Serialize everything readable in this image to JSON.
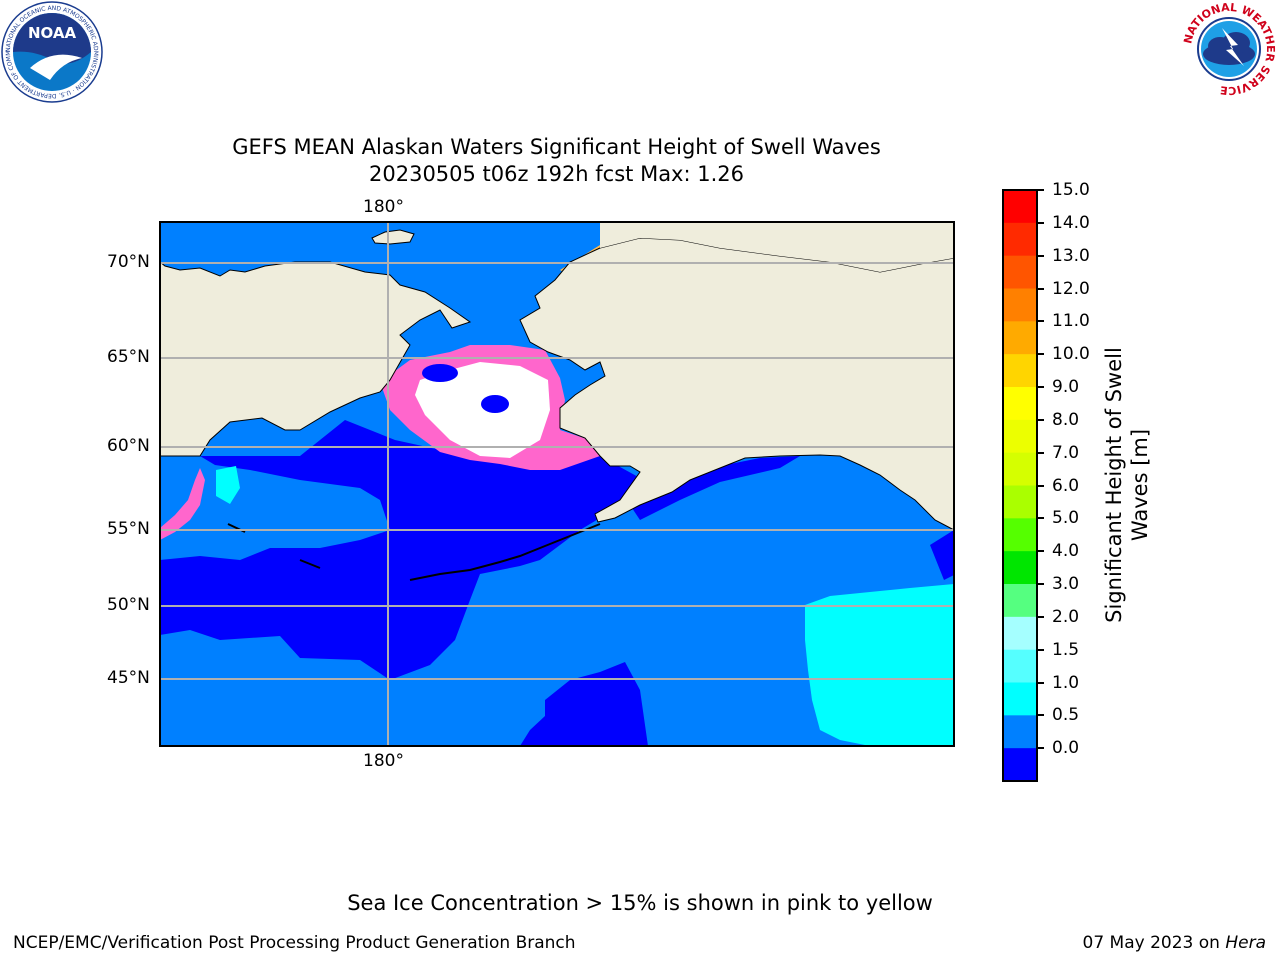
{
  "logos": {
    "noaa": {
      "text": "NOAA",
      "ring_text": "NATIONAL OCEANIC AND ATMOSPHERIC ADMINISTRATION · U.S. DEPARTMENT OF COMMERCE"
    },
    "nws": {
      "ring_text": "NATIONAL WEATHER SERVICE"
    }
  },
  "header": {
    "title_line1": "GEFS MEAN Alaskan Waters Significant Height of Swell Waves",
    "title_line2": "20230505 t06z 192h fcst   Max: 1.26"
  },
  "map": {
    "top_lon_label": "180°",
    "bottom_lon_label": "180°",
    "lat_labels": [
      "70°N",
      "65°N",
      "60°N",
      "55°N",
      "50°N",
      "45°N"
    ],
    "colors": {
      "land": "#efeddc",
      "ocean_low": "#0000fe",
      "ocean_mid": "#0080ff",
      "ocean_high": "#00ffff",
      "ice": "#ff66cc",
      "grid": "#b0b0b0"
    }
  },
  "colorbar": {
    "label_line1": "Significant Height of Swell",
    "label_line2": "Waves [m]",
    "ticks": [
      "15.0",
      "14.0",
      "13.0",
      "12.0",
      "11.0",
      "10.0",
      "9.0",
      "8.0",
      "7.0",
      "6.0",
      "5.0",
      "4.0",
      "3.0",
      "2.0",
      "1.5",
      "1.0",
      "0.5",
      "0.0"
    ],
    "colors_top_to_bottom": [
      "#ff0000",
      "#ff2a00",
      "#ff5500",
      "#ff8000",
      "#ffaa00",
      "#ffd500",
      "#ffff00",
      "#ecff00",
      "#d5ff00",
      "#aaff00",
      "#55ff00",
      "#00e600",
      "#55ff80",
      "#a5ffff",
      "#55ffff",
      "#00ffff",
      "#0080ff",
      "#0000ff"
    ]
  },
  "footer": {
    "note": "Sea Ice Concentration > 15% is shown in pink to yellow",
    "left": "NCEP/EMC/Verification Post Processing Product Generation Branch",
    "right_date": "07 May 2023 on",
    "right_host": "Hera"
  }
}
